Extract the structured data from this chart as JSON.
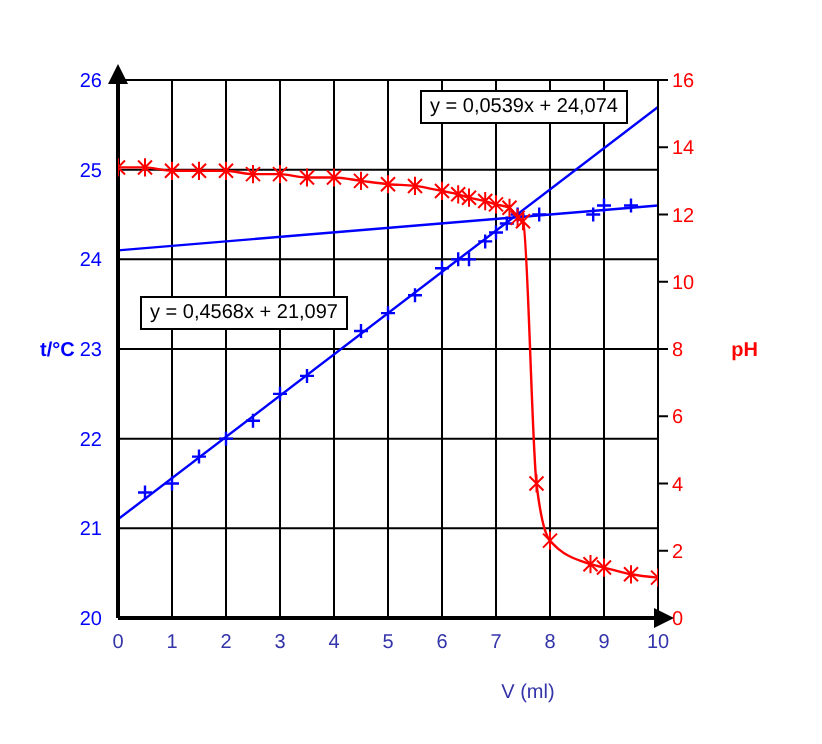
{
  "chart_data": {
    "type": "line",
    "xlabel": "V (ml)",
    "ylabel": "t/°C",
    "y2label": "pH",
    "xlim": [
      0,
      10
    ],
    "xticks": [
      0,
      1,
      2,
      3,
      4,
      5,
      6,
      7,
      8,
      9,
      10
    ],
    "ylim": [
      20,
      26
    ],
    "yticks": [
      20,
      21,
      22,
      23,
      24,
      25,
      26
    ],
    "y2lim": [
      0,
      16
    ],
    "y2ticks": [
      0,
      2,
      4,
      6,
      8,
      10,
      12,
      14,
      16
    ],
    "grid": true,
    "annotations": [
      "y = 0,0539x + 24,074",
      "y = 0,4568x + 21,097"
    ],
    "series": [
      {
        "type": "scatter",
        "color": "#0000ff",
        "marker": "cross",
        "x": [
          0.5,
          1,
          1.5,
          2,
          2.5,
          3,
          3.5,
          4.5,
          5,
          5.5,
          6,
          6.3,
          6.5,
          6.8,
          7,
          7.2,
          7.4,
          7.8,
          8.8,
          9,
          9.5
        ],
        "values": [
          21.4,
          21.5,
          21.8,
          22.0,
          22.2,
          22.5,
          22.7,
          23.2,
          23.4,
          23.6,
          23.9,
          24.0,
          24.0,
          24.2,
          24.3,
          24.4,
          24.5,
          24.5,
          24.5,
          24.6,
          24.6
        ]
      },
      {
        "color": "#ff0000",
        "marker": "cross",
        "axis": "y2",
        "x": [
          0,
          0.5,
          1,
          1.5,
          2,
          2.5,
          3,
          3.5,
          4,
          4.5,
          5,
          5.5,
          6,
          6.3,
          6.5,
          6.8,
          7,
          7.25,
          7.4,
          7.5,
          7.75,
          8,
          8.75,
          9,
          9.5,
          10
        ],
        "values": [
          13.4,
          13.4,
          13.3,
          13.3,
          13.3,
          13.2,
          13.2,
          13.1,
          13.1,
          13.0,
          12.9,
          12.85,
          12.7,
          12.6,
          12.5,
          12.4,
          12.3,
          12.2,
          11.9,
          11.8,
          4.0,
          2.3,
          1.6,
          1.5,
          1.3,
          1.2
        ]
      },
      {
        "color": "#0000ff",
        "marker": "none",
        "x": [
          0,
          10
        ],
        "values": [
          21.1,
          25.7
        ]
      },
      {
        "color": "#0000ff",
        "marker": "none",
        "x": [
          0,
          10
        ],
        "values": [
          24.1,
          24.6
        ]
      }
    ]
  }
}
